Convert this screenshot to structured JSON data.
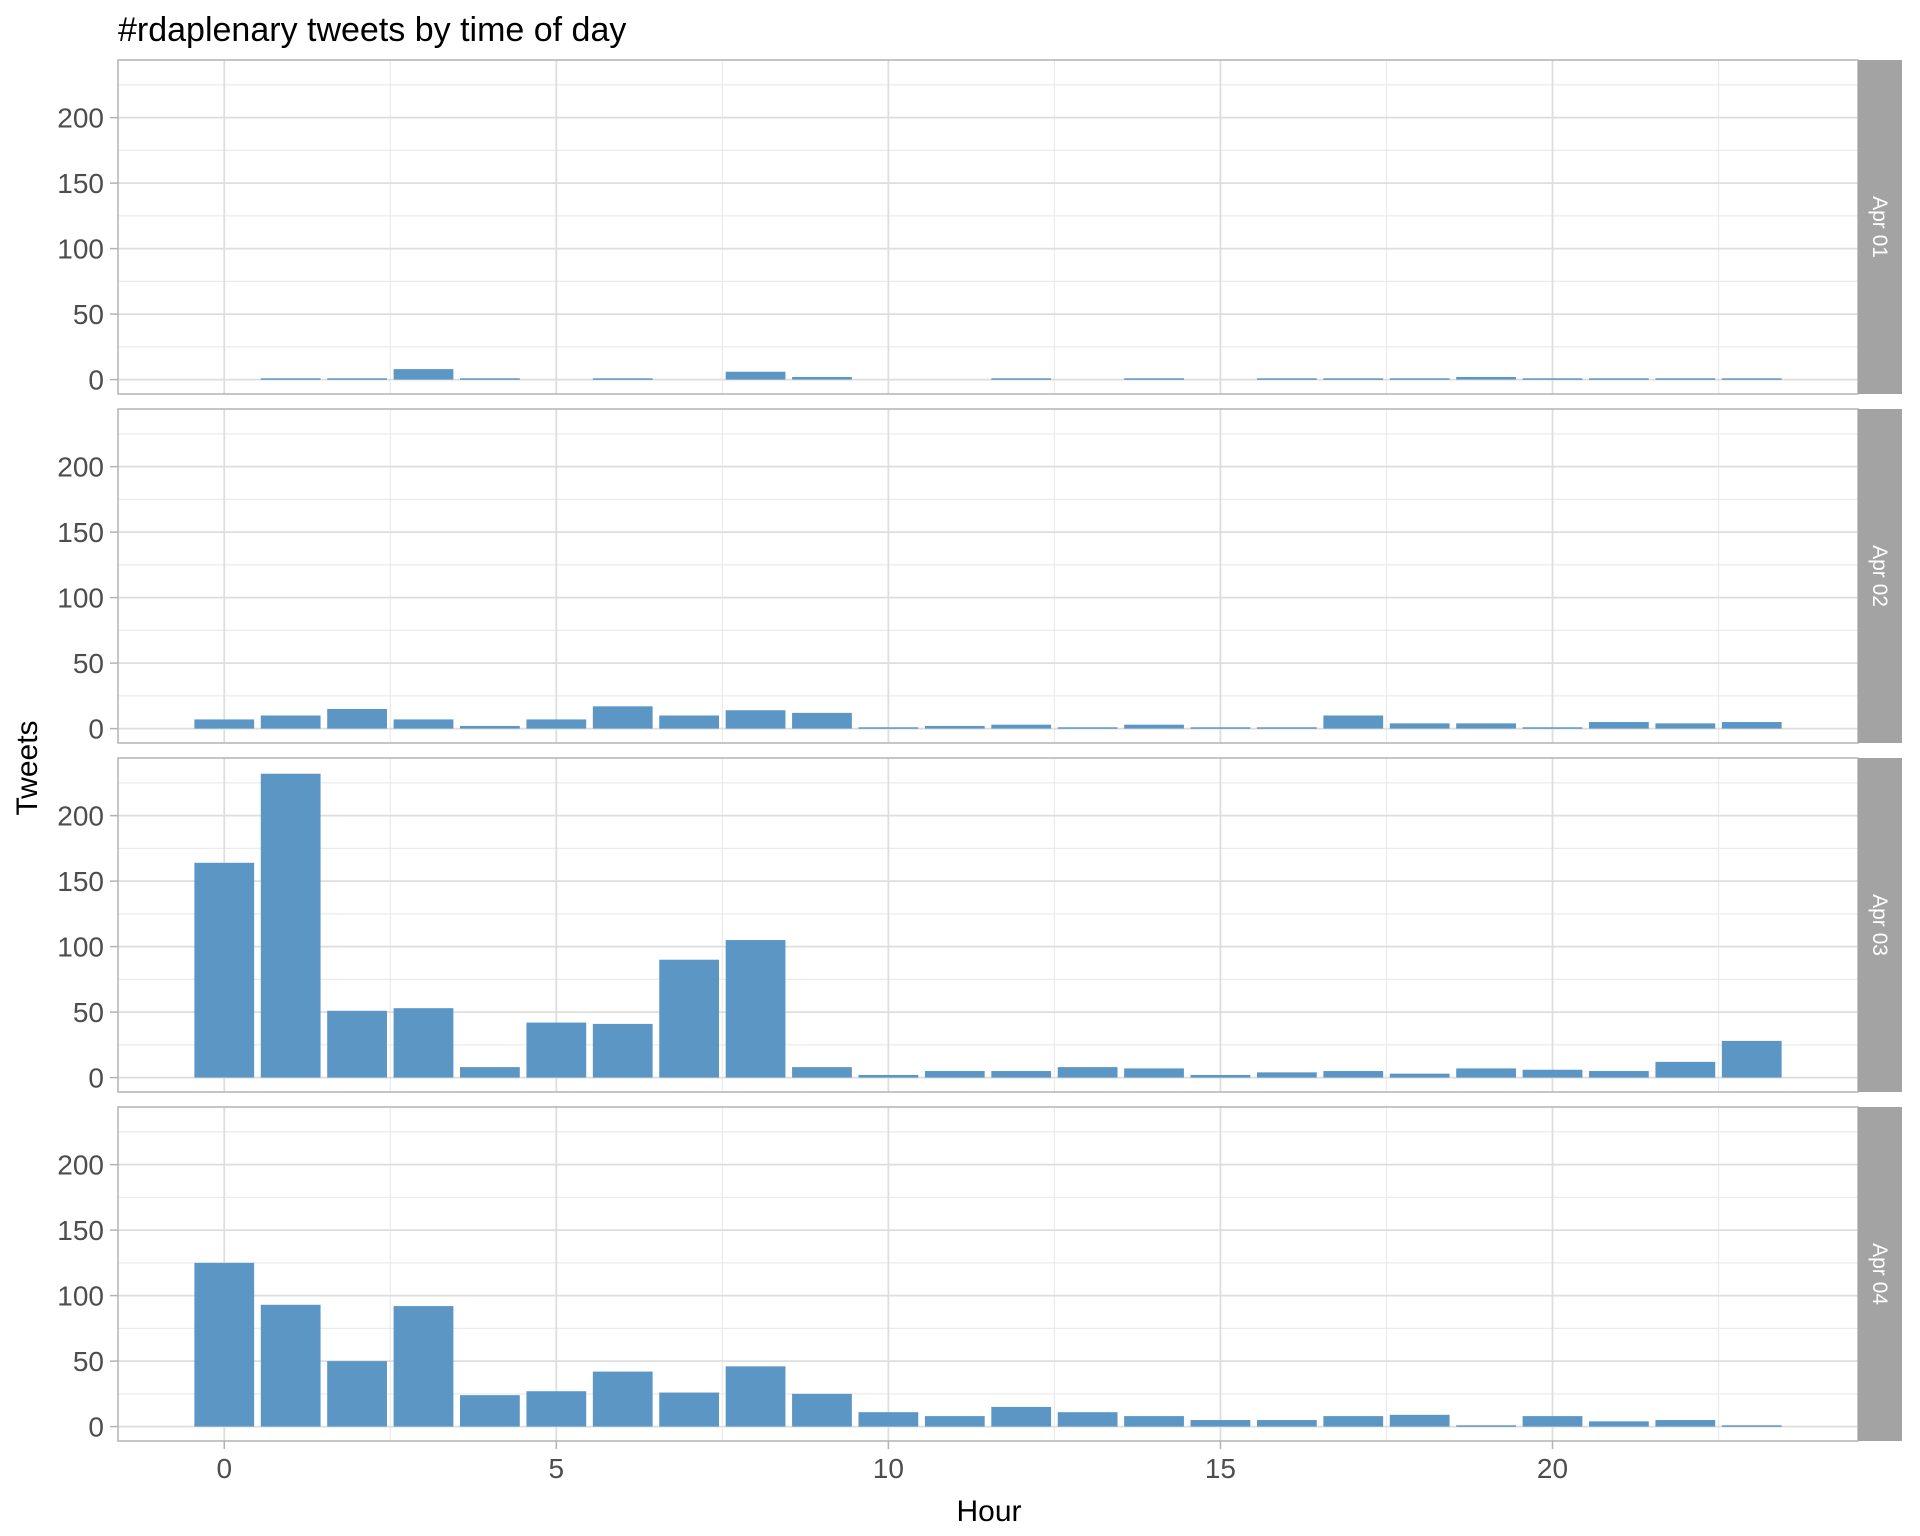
{
  "chart_data": {
    "type": "bar",
    "title": "#rdaplenary tweets by time of day",
    "xlabel": "Hour",
    "ylabel": "Tweets",
    "x": [
      0,
      1,
      2,
      3,
      4,
      5,
      6,
      7,
      8,
      9,
      10,
      11,
      12,
      13,
      14,
      15,
      16,
      17,
      18,
      19,
      20,
      21,
      22,
      23
    ],
    "xlim": [
      -1.6,
      24.6
    ],
    "ylim": [
      -11,
      244
    ],
    "x_ticks": [
      0,
      5,
      10,
      15,
      20
    ],
    "y_ticks": [
      0,
      50,
      100,
      150,
      200
    ],
    "grid": true,
    "bar_color": "#5b96c4",
    "facets": [
      {
        "label": "Apr 01",
        "values": [
          0,
          1,
          1,
          8,
          1,
          0,
          1,
          0,
          6,
          2,
          0,
          0,
          1,
          0,
          1,
          0,
          1,
          1,
          1,
          2,
          1,
          1,
          1,
          1
        ]
      },
      {
        "label": "Apr 02",
        "values": [
          7,
          10,
          15,
          7,
          2,
          7,
          17,
          10,
          14,
          12,
          1,
          2,
          3,
          1,
          3,
          1,
          1,
          10,
          4,
          4,
          1,
          5,
          4,
          5
        ]
      },
      {
        "label": "Apr 03",
        "values": [
          164,
          232,
          51,
          53,
          8,
          42,
          41,
          90,
          105,
          8,
          2,
          5,
          5,
          8,
          7,
          2,
          4,
          5,
          3,
          7,
          6,
          5,
          12,
          28
        ]
      },
      {
        "label": "Apr 04",
        "values": [
          125,
          93,
          50,
          92,
          24,
          27,
          42,
          26,
          46,
          25,
          11,
          8,
          15,
          11,
          8,
          5,
          5,
          8,
          9,
          1,
          8,
          4,
          5,
          1
        ]
      }
    ]
  }
}
